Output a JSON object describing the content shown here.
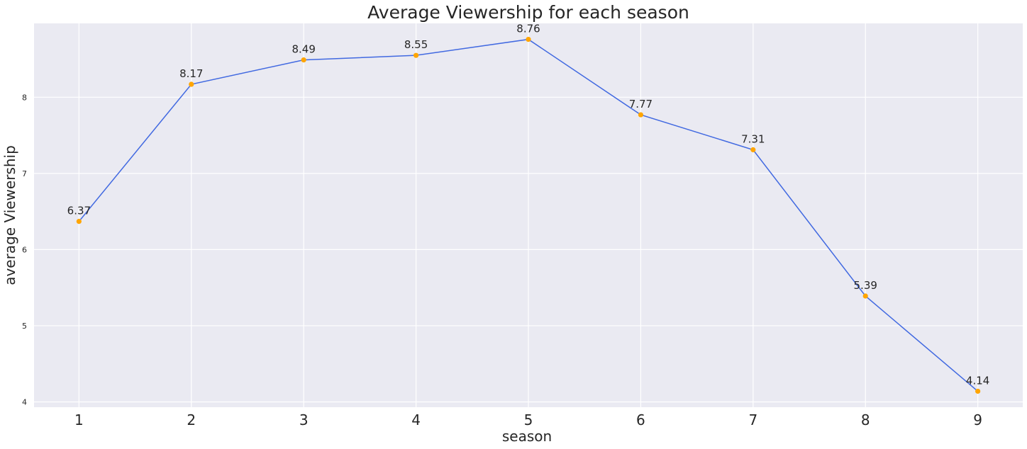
{
  "chart_data": {
    "type": "line",
    "title": "Average Viewership for each season",
    "xlabel": "season",
    "ylabel": "average Viewership",
    "x": [
      1,
      2,
      3,
      4,
      5,
      6,
      7,
      8,
      9
    ],
    "series": [
      {
        "values": [
          6.37,
          8.17,
          8.49,
          8.55,
          8.76,
          7.77,
          7.31,
          5.39,
          4.14
        ]
      }
    ],
    "data_labels": [
      "6.37",
      "8.17",
      "8.49",
      "8.55",
      "8.76",
      "7.77",
      "7.31",
      "5.39",
      "4.14"
    ],
    "xticks": [
      "1",
      "2",
      "3",
      "4",
      "5",
      "6",
      "7",
      "8",
      "9"
    ],
    "yticks": [
      4,
      5,
      6,
      7,
      8
    ],
    "xlim": [
      0.6,
      9.4
    ],
    "ylim": [
      3.93,
      8.97
    ],
    "grid": true,
    "colors": {
      "background": "#eaeaf2",
      "grid": "#ffffff",
      "line": "#4169e1",
      "marker": "#ffa500"
    }
  }
}
